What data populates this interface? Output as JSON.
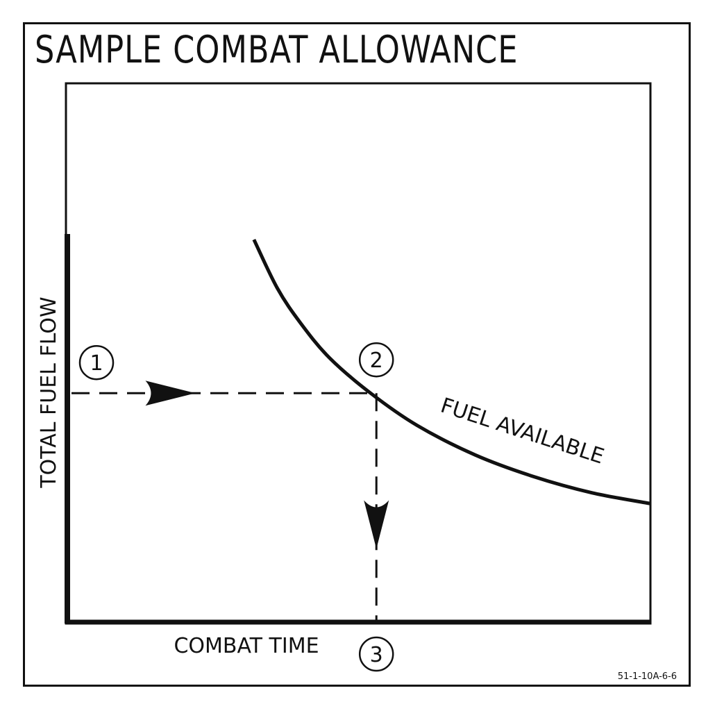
{
  "title": "SAMPLE COMBAT ALLOWANCE",
  "figure_id": "51-1-10A-6-6",
  "chart_data": {
    "type": "line",
    "title": "SAMPLE COMBAT ALLOWANCE",
    "xlabel": "COMBAT TIME",
    "ylabel": "TOTAL FUEL FLOW",
    "grid": false,
    "series": [
      {
        "name": "FUEL AVAILABLE",
        "points": [
          [
            0.32,
            0.71
          ],
          [
            0.36,
            0.62
          ],
          [
            0.4,
            0.555
          ],
          [
            0.45,
            0.49
          ],
          [
            0.52,
            0.425
          ],
          [
            0.6,
            0.365
          ],
          [
            0.7,
            0.31
          ],
          [
            0.8,
            0.27
          ],
          [
            0.9,
            0.24
          ],
          [
            1.0,
            0.22
          ]
        ]
      }
    ],
    "steps": [
      {
        "label": "1",
        "value": 0.425
      },
      {
        "label": "2",
        "x": 0.53,
        "y": 0.425
      },
      {
        "label": "3",
        "value": 0.53
      }
    ]
  }
}
